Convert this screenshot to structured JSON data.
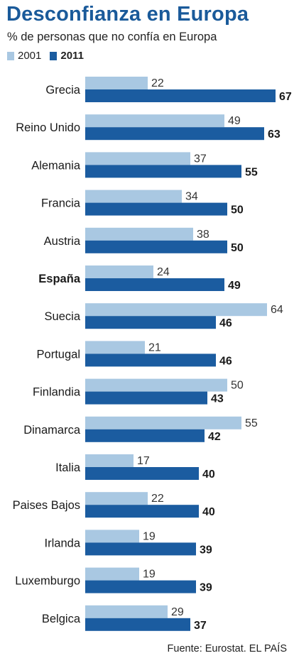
{
  "title": "Desconfianza en Europa",
  "subtitle": "% de personas que no confía en Europa",
  "colors": {
    "series2001": "#a9c8e2",
    "series2011": "#1b5ca0",
    "title": "#1a5a9a"
  },
  "source": "Fuente: Eurostat. EL PAÍS",
  "chart_data": {
    "type": "bar",
    "orientation": "horizontal",
    "title": "Desconfianza en Europa",
    "subtitle": "% de personas que no confía en Europa",
    "categories": [
      "Grecia",
      "Reino Unido",
      "Alemania",
      "Francia",
      "Austria",
      "España",
      "Suecia",
      "Portugal",
      "Finlandia",
      "Dinamarca",
      "Italia",
      "Paises Bajos",
      "Irlanda",
      "Luxemburgo",
      "Belgica"
    ],
    "highlight": "España",
    "series": [
      {
        "name": "2001",
        "values": [
          22,
          49,
          37,
          34,
          38,
          24,
          64,
          21,
          50,
          55,
          17,
          22,
          19,
          19,
          29
        ]
      },
      {
        "name": "2011",
        "values": [
          67,
          63,
          55,
          50,
          50,
          49,
          46,
          46,
          43,
          42,
          40,
          40,
          39,
          39,
          37
        ]
      }
    ],
    "xlim": [
      0,
      67
    ],
    "legend": "top-left",
    "grid": false
  }
}
